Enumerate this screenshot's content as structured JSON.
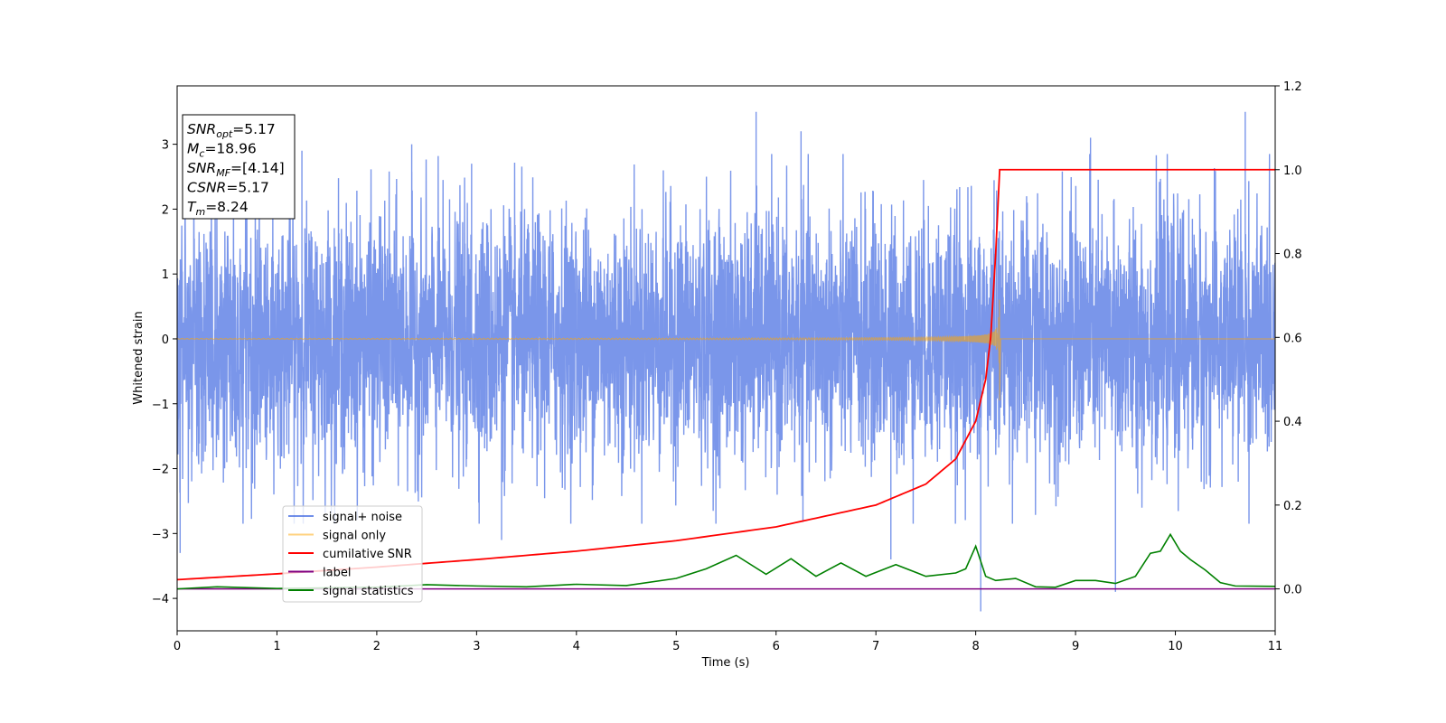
{
  "chart_data": {
    "type": "line",
    "xlabel": "Time (s)",
    "ylabel": "Whitened strain",
    "xlim": [
      0,
      11
    ],
    "ylim": [
      -4.5,
      3.9
    ],
    "y2lim": [
      -0.1,
      1.2
    ],
    "x_ticks": [
      "0",
      "1",
      "2",
      "3",
      "4",
      "5",
      "6",
      "7",
      "8",
      "9",
      "10",
      "11"
    ],
    "y_ticks": [
      "3",
      "2",
      "1",
      "0",
      "−1",
      "−2",
      "−3",
      "−4"
    ],
    "y2_ticks": [
      "1.2",
      "1.0",
      "0.8",
      "0.6",
      "0.4",
      "0.2",
      "0.0"
    ],
    "grid": false,
    "legend_position": "lower-left",
    "info_box": [
      {
        "base": "SNR",
        "sub": "opt",
        "value": "=5.17"
      },
      {
        "base": "M",
        "sub": "c",
        "value": "=18.96"
      },
      {
        "base": "SNR",
        "sub": "MF",
        "value": "=[4.14]"
      },
      {
        "base": "CSNR",
        "sub": "",
        "value": "=5.17"
      },
      {
        "base": "T",
        "sub": "m",
        "value": "=8.24"
      }
    ],
    "series": [
      {
        "name": "signal+ noise",
        "color": "#4169e1",
        "axis": "left",
        "noise_band": [
          -2.1,
          2.0
        ],
        "peaks_x": [
          0.03,
          1.25,
          2.35,
          2.95,
          3.25,
          5.8,
          6.25,
          7.15,
          8.05,
          9.15,
          9.4,
          10.7
        ],
        "peaks_y": [
          -3.3,
          2.9,
          3.0,
          2.7,
          -3.1,
          3.5,
          3.2,
          -3.4,
          -4.2,
          3.1,
          -3.9,
          3.5
        ]
      },
      {
        "name": "signal only",
        "color": "#ffa500",
        "axis": "left",
        "chirp_end": 8.24,
        "peak_amplitude": [
          1.0,
          -0.95
        ]
      },
      {
        "name": "cumilative SNR",
        "color": "#ff0000",
        "axis": "right",
        "x": [
          0,
          1,
          2,
          3,
          4,
          5,
          6,
          7,
          7.5,
          7.8,
          8.0,
          8.1,
          8.15,
          8.2,
          8.24,
          9,
          10,
          11
        ],
        "y": [
          0.022,
          0.036,
          0.052,
          0.07,
          0.09,
          0.115,
          0.148,
          0.2,
          0.25,
          0.31,
          0.4,
          0.5,
          0.6,
          0.8,
          1.0,
          1.0,
          1.0,
          1.0
        ]
      },
      {
        "name": "label",
        "color": "#800080",
        "axis": "right",
        "x": [
          0,
          11
        ],
        "y": [
          0,
          0
        ]
      },
      {
        "name": "signal statistics",
        "color": "#008000",
        "axis": "right",
        "x": [
          0,
          0.4,
          1,
          2,
          2.5,
          3,
          3.5,
          4,
          4.5,
          5,
          5.3,
          5.6,
          5.9,
          6.15,
          6.4,
          6.65,
          6.9,
          7.2,
          7.5,
          7.8,
          7.9,
          8.0,
          8.1,
          8.2,
          8.4,
          8.6,
          8.8,
          9.0,
          9.2,
          9.4,
          9.6,
          9.75,
          9.85,
          9.95,
          10.05,
          10.15,
          10.3,
          10.45,
          10.6,
          11
        ],
        "y": [
          0,
          0.005,
          0.001,
          0.004,
          0.01,
          0.007,
          0.005,
          0.011,
          0.008,
          0.025,
          0.048,
          0.08,
          0.035,
          0.072,
          0.03,
          0.062,
          0.03,
          0.058,
          0.03,
          0.038,
          0.048,
          0.102,
          0.03,
          0.02,
          0.025,
          0.005,
          0.004,
          0.02,
          0.02,
          0.013,
          0.03,
          0.085,
          0.09,
          0.13,
          0.09,
          0.07,
          0.045,
          0.015,
          0.007,
          0.006
        ]
      }
    ]
  }
}
